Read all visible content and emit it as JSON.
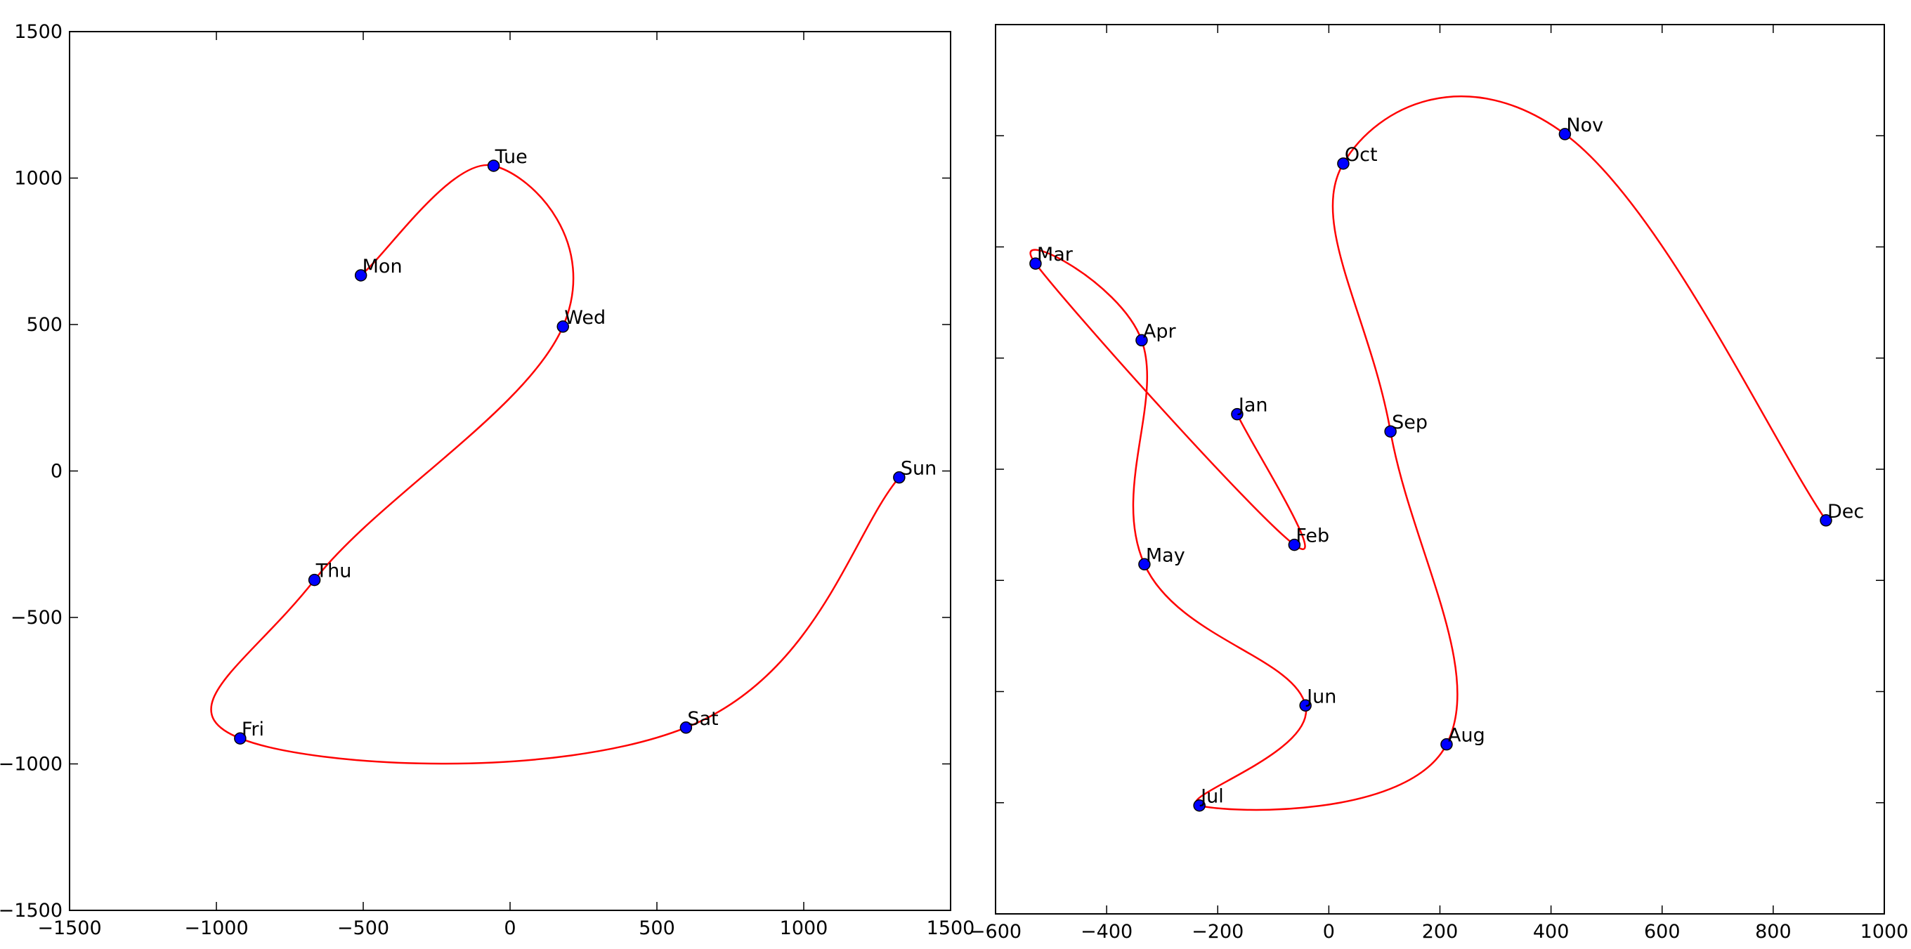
{
  "chart_data": [
    {
      "type": "scatter",
      "title": "",
      "xlabel": "",
      "ylabel": "",
      "xlim": [
        -1500,
        1500
      ],
      "ylim": [
        -1500,
        1500
      ],
      "xticks": [
        -1500,
        -1000,
        -500,
        0,
        500,
        1000,
        1500
      ],
      "yticks": [
        -1500,
        -1000,
        -500,
        0,
        500,
        1000,
        1500
      ],
      "xtick_labels": [
        "−1500",
        "−1000",
        "−500",
        "0",
        "500",
        "1000",
        "1500"
      ],
      "ytick_labels": [
        "−1500",
        "−1000",
        "−500",
        "0",
        "500",
        "1000",
        "1500"
      ],
      "grid": false,
      "marker_color": "#0000ff",
      "curve_color": "#ff0000",
      "curve": "smooth closed-order path through points",
      "points": [
        {
          "label": "Mon",
          "x": -508,
          "y": 668
        },
        {
          "label": "Tue",
          "x": -56,
          "y": 1042
        },
        {
          "label": "Wed",
          "x": 180,
          "y": 493
        },
        {
          "label": "Thu",
          "x": -666,
          "y": -372
        },
        {
          "label": "Fri",
          "x": -919,
          "y": -913
        },
        {
          "label": "Sat",
          "x": 599,
          "y": -876
        },
        {
          "label": "Sun",
          "x": 1325,
          "y": -22
        }
      ]
    },
    {
      "type": "scatter",
      "title": "",
      "xlabel": "",
      "ylabel": "",
      "xlim": [
        -600,
        1000
      ],
      "ylim": [
        -600,
        1000
      ],
      "xticks": [
        -600,
        -400,
        -200,
        0,
        200,
        400,
        600,
        800,
        1000
      ],
      "yticks": [
        -400,
        -200,
        0,
        200,
        400,
        600,
        800
      ],
      "xtick_labels": [
        "−600",
        "−400",
        "−200",
        "0",
        "200",
        "400",
        "600",
        "800",
        "1000"
      ],
      "ytick_labels": [],
      "grid": false,
      "marker_color": "#0000ff",
      "curve_color": "#ff0000",
      "curve": "smooth path through points in order",
      "points": [
        {
          "label": "Jan",
          "x": -165,
          "y": 299
        },
        {
          "label": "Feb",
          "x": -62,
          "y": 64
        },
        {
          "label": "Mar",
          "x": -528,
          "y": 570
        },
        {
          "label": "Apr",
          "x": -337,
          "y": 432
        },
        {
          "label": "May",
          "x": -332,
          "y": 29
        },
        {
          "label": "Jun",
          "x": -42,
          "y": -225
        },
        {
          "label": "Jul",
          "x": -233,
          "y": -405
        },
        {
          "label": "Aug",
          "x": 212,
          "y": -295
        },
        {
          "label": "Sep",
          "x": 111,
          "y": 268
        },
        {
          "label": "Oct",
          "x": 26,
          "y": 750
        },
        {
          "label": "Nov",
          "x": 425,
          "y": 803
        },
        {
          "label": "Dec",
          "x": 895,
          "y": 108
        }
      ]
    }
  ]
}
